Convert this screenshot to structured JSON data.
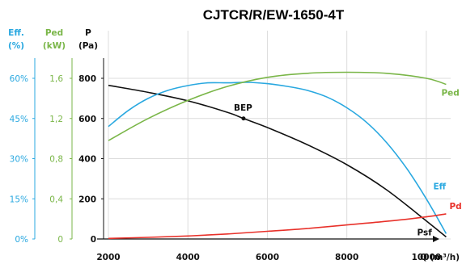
{
  "chart_data": {
    "type": "line",
    "title": "CJTCR/R/EW-1650-4T",
    "xlabel": "Q (m³/h)",
    "x_ticks": [
      "2000",
      "4000",
      "6000",
      "8000",
      "10000"
    ],
    "xlim": [
      2000,
      11000
    ],
    "axes": {
      "p": {
        "head1": "P",
        "head2": "(Pa)",
        "ticks": [
          "0",
          "200",
          "400",
          "600",
          "800"
        ],
        "range": [
          0,
          800
        ],
        "color": "#111111"
      },
      "ped": {
        "head1": "Ped",
        "head2": "(kW)",
        "ticks": [
          "0",
          "0,4",
          "0,8",
          "1,2",
          "1,6"
        ],
        "range": [
          0,
          1.6
        ],
        "color": "#7ab648"
      },
      "eff": {
        "head1": "Eff.",
        "head2": "(%)",
        "ticks": [
          "0%",
          "15%",
          "30%",
          "45%",
          "60%"
        ],
        "range": [
          0,
          60
        ],
        "color": "#29a8e0"
      }
    },
    "grid": true,
    "series": [
      {
        "name": "Psf",
        "axis": "p",
        "color": "#111111",
        "x": [
          2000,
          3000,
          4000,
          5000,
          5400,
          6000,
          7000,
          8000,
          9000,
          10000,
          10500
        ],
        "y": [
          765,
          730,
          688,
          630,
          600,
          555,
          470,
          370,
          245,
          90,
          10
        ]
      },
      {
        "name": "Eff",
        "axis": "eff",
        "color": "#29a8e0",
        "x": [
          2000,
          2500,
          3000,
          3500,
          4000,
          4500,
          5000,
          5500,
          6000,
          6500,
          7000,
          7500,
          8000,
          8500,
          9000,
          9500,
          10000,
          10500
        ],
        "y": [
          42,
          48,
          52.5,
          55.5,
          57.3,
          58.3,
          58.3,
          58.5,
          58,
          57,
          55.5,
          53,
          49,
          43.5,
          36,
          26.5,
          15,
          2
        ]
      },
      {
        "name": "Ped",
        "axis": "ped",
        "color": "#7ab648",
        "x": [
          2000,
          3000,
          4000,
          5000,
          6000,
          7000,
          8000,
          9000,
          10000,
          10500
        ],
        "y": [
          0.98,
          1.2,
          1.38,
          1.52,
          1.61,
          1.65,
          1.66,
          1.65,
          1.6,
          1.54
        ]
      },
      {
        "name": "Pd",
        "axis": "p",
        "color": "#e8312a",
        "x": [
          2000,
          3000,
          4000,
          5000,
          6000,
          7000,
          8000,
          9000,
          10000,
          10500
        ],
        "y": [
          3,
          8,
          15,
          25,
          38,
          52,
          70,
          88,
          110,
          125
        ]
      }
    ],
    "annotations": [
      {
        "text": "BEP",
        "x": 5400,
        "y": 600,
        "axis": "p",
        "marker": "dot"
      }
    ]
  }
}
